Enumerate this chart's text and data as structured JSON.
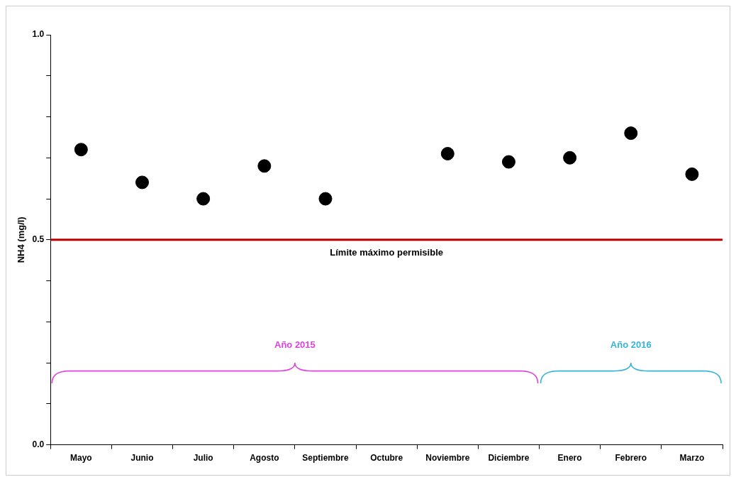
{
  "chart_data": {
    "type": "scatter",
    "ylabel": "NH4 (mg/l)",
    "categories": [
      "Mayo",
      "Junio",
      "Julio",
      "Agosto",
      "Septiembre",
      "Octubre",
      "Noviembre",
      "Diciembre",
      "Enero",
      "Febrero",
      "Marzo"
    ],
    "series": [
      {
        "color": "#000000",
        "values": [
          0.72,
          0.64,
          0.6,
          0.68,
          0.6,
          null,
          0.71,
          0.69,
          0.7,
          0.76,
          0.66
        ]
      }
    ],
    "ylim": [
      0,
      1
    ],
    "yticks": [
      {
        "value": 0,
        "label": "0.0"
      },
      {
        "value": 0.1,
        "label": null
      },
      {
        "value": 0.2,
        "label": null
      },
      {
        "value": 0.3,
        "label": null
      },
      {
        "value": 0.4,
        "label": null
      },
      {
        "value": 0.5,
        "label": "0.5"
      },
      {
        "value": 0.6,
        "label": null
      },
      {
        "value": 0.7,
        "label": null
      },
      {
        "value": 0.8,
        "label": null
      },
      {
        "value": 0.9,
        "label": null
      },
      {
        "value": 1,
        "label": "1.0"
      }
    ],
    "ref_lines": [
      {
        "axis": "y",
        "value": 0.5,
        "label": "Límite máximo permisible",
        "color": "#c00000"
      }
    ],
    "annotations": [
      "Año 2015",
      "Año 2016"
    ],
    "grid": false,
    "legend": false,
    "marker": "circle"
  }
}
